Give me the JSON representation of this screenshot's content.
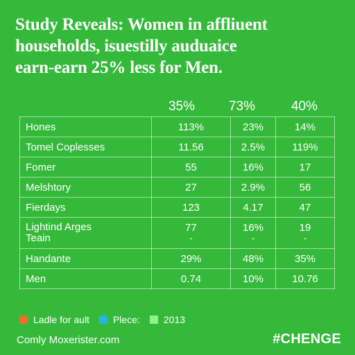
{
  "headline": {
    "line1": "Study Reveals: Women in affliuent",
    "line2": "households, isuestilly auduaice",
    "line3": "earn-earn 25% less for Men."
  },
  "table": {
    "column_headers": [
      "35%",
      "73%",
      "40%"
    ],
    "rows": [
      {
        "label": "Hones",
        "sub": "",
        "values": [
          "113%",
          "23%",
          "14%"
        ],
        "subvals": [
          "",
          "",
          ""
        ]
      },
      {
        "label": "Tomel Coplesses",
        "sub": "",
        "values": [
          "11.56",
          "2.5%",
          "119%"
        ],
        "subvals": [
          "",
          "",
          ""
        ]
      },
      {
        "label": "Fomer",
        "sub": "",
        "values": [
          "55",
          "16%",
          "17"
        ],
        "subvals": [
          "",
          "",
          ""
        ]
      },
      {
        "label": "Melshtory",
        "sub": "",
        "values": [
          "27",
          "2.9%",
          "56"
        ],
        "subvals": [
          "",
          "",
          ""
        ]
      },
      {
        "label": "Fierdays",
        "sub": "",
        "values": [
          "123",
          "4.17",
          "47"
        ],
        "subvals": [
          "",
          "",
          ""
        ]
      },
      {
        "label": "Lightind Arges",
        "sub": "Teain",
        "values": [
          "77",
          "16%",
          "19"
        ],
        "subvals": [
          "-",
          "-",
          "-"
        ]
      },
      {
        "label": "Handante",
        "sub": "",
        "values": [
          "29%",
          "48%",
          "35%"
        ],
        "subvals": [
          "",
          "",
          ""
        ]
      },
      {
        "label": "Men",
        "sub": "",
        "values": [
          "0.74",
          "10%",
          "10.76"
        ],
        "subvals": [
          "",
          "",
          ""
        ]
      }
    ]
  },
  "legend": [
    {
      "label": "Ladle for ault",
      "color": "#f26b2a"
    },
    {
      "label": "Plece:",
      "color": "#27b4e3"
    },
    {
      "label": "2013",
      "color": "#8ef28f"
    }
  ],
  "footer": {
    "source": "Comly Moxerister.com",
    "tag": "#CHENGE"
  }
}
